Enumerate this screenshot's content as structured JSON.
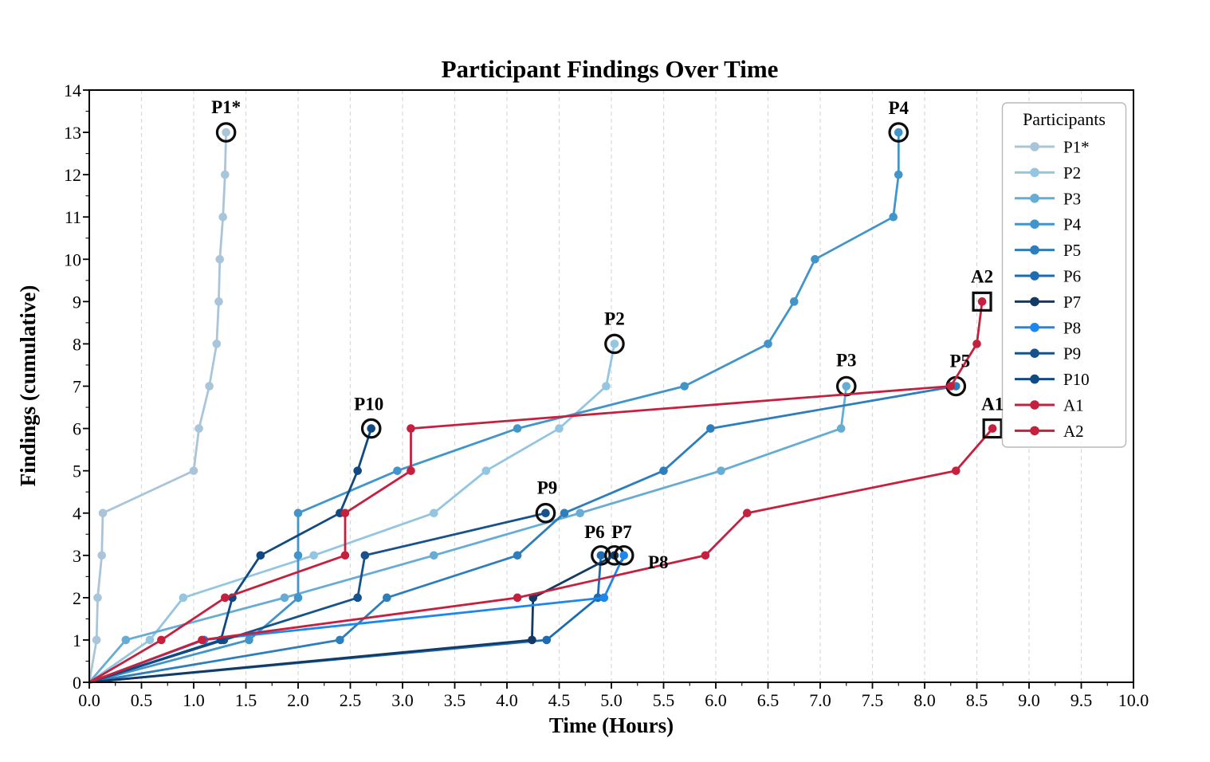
{
  "title": "Participant Findings Over Time",
  "chart_data": {
    "type": "line",
    "title": "Participant Findings Over Time",
    "xlabel": "Time (Hours)",
    "ylabel": "Findings (cumulative)",
    "xlim": [
      0.0,
      10.0
    ],
    "ylim": [
      0,
      14
    ],
    "xticks": [
      0.0,
      0.5,
      1.0,
      1.5,
      2.0,
      2.5,
      3.0,
      3.5,
      4.0,
      4.5,
      5.0,
      5.5,
      6.0,
      6.5,
      7.0,
      7.5,
      8.0,
      8.5,
      9.0,
      9.5,
      10.0
    ],
    "xtick_labels": [
      "0.0",
      "0.5",
      "1.0",
      "1.5",
      "2.0",
      "2.5",
      "3.0",
      "3.5",
      "4.0",
      "4.5",
      "5.0",
      "5.5",
      "6.0",
      "6.5",
      "7.0",
      "7.5",
      "8.0",
      "8.5",
      "9.0",
      "9.5",
      "10.0"
    ],
    "yticks": [
      0,
      1,
      2,
      3,
      4,
      5,
      6,
      7,
      8,
      9,
      10,
      11,
      12,
      13,
      14
    ],
    "grid": "vertical dashed gridlines at 0.5 hour intervals",
    "grid_color": "#d8d8d8",
    "frame_color": "#000000",
    "legend_title": "Participants",
    "legend_position": "upper right",
    "end_marker_outline_color": "#0d0d0d",
    "series": [
      {
        "name": "P1*",
        "color": "#a9c5da",
        "end_marker": "circle",
        "label_dx": 0,
        "label_dy": -24,
        "points": [
          [
            0,
            0
          ],
          [
            0.07,
            1
          ],
          [
            0.08,
            2
          ],
          [
            0.12,
            3
          ],
          [
            0.13,
            4
          ],
          [
            1.0,
            5
          ],
          [
            1.05,
            6
          ],
          [
            1.15,
            7
          ],
          [
            1.22,
            8
          ],
          [
            1.24,
            9
          ],
          [
            1.25,
            10
          ],
          [
            1.28,
            11
          ],
          [
            1.3,
            12
          ],
          [
            1.31,
            13
          ]
        ]
      },
      {
        "name": "P2",
        "color": "#94c6e1",
        "end_marker": "circle",
        "label_dx": 0,
        "label_dy": -24,
        "points": [
          [
            0,
            0
          ],
          [
            0.58,
            1
          ],
          [
            0.9,
            2
          ],
          [
            2.15,
            3
          ],
          [
            3.3,
            4
          ],
          [
            3.8,
            5
          ],
          [
            4.5,
            6
          ],
          [
            4.95,
            7
          ],
          [
            5.03,
            8
          ]
        ]
      },
      {
        "name": "P3",
        "color": "#66acd4",
        "end_marker": "circle",
        "label_dx": 0,
        "label_dy": -25,
        "points": [
          [
            0,
            0
          ],
          [
            0.35,
            1
          ],
          [
            1.87,
            2
          ],
          [
            3.3,
            3
          ],
          [
            4.7,
            4
          ],
          [
            6.05,
            5
          ],
          [
            7.2,
            6
          ],
          [
            7.25,
            7
          ]
        ]
      },
      {
        "name": "P4",
        "color": "#4295c8",
        "end_marker": "circle",
        "label_dx": 0,
        "label_dy": -23,
        "points": [
          [
            0,
            0
          ],
          [
            1.53,
            1
          ],
          [
            2.0,
            2
          ],
          [
            2.0,
            3
          ],
          [
            2.0,
            4
          ],
          [
            2.95,
            5
          ],
          [
            4.1,
            6
          ],
          [
            5.7,
            7
          ],
          [
            6.5,
            8
          ],
          [
            6.75,
            9
          ],
          [
            6.95,
            10
          ],
          [
            7.7,
            11
          ],
          [
            7.75,
            12
          ],
          [
            7.75,
            13
          ]
        ]
      },
      {
        "name": "P5",
        "color": "#2e7ebc",
        "end_marker": "circle",
        "label_dx": 5,
        "label_dy": -24,
        "points": [
          [
            0,
            0
          ],
          [
            2.4,
            1
          ],
          [
            2.85,
            2
          ],
          [
            4.1,
            3
          ],
          [
            4.55,
            4
          ],
          [
            5.5,
            5
          ],
          [
            5.95,
            6
          ],
          [
            8.3,
            7
          ]
        ]
      },
      {
        "name": "P6",
        "color": "#1d6cb1",
        "end_marker": "circle",
        "label_dx": -8,
        "label_dy": -22,
        "points": [
          [
            0,
            0
          ],
          [
            4.38,
            1
          ],
          [
            4.87,
            2
          ],
          [
            4.9,
            3
          ]
        ]
      },
      {
        "name": "P7",
        "color": "#123a64",
        "end_marker": "circle",
        "label_dx": 9,
        "label_dy": -22,
        "points": [
          [
            0,
            0
          ],
          [
            4.24,
            1
          ],
          [
            4.25,
            2
          ],
          [
            5.03,
            3
          ]
        ]
      },
      {
        "name": "P8",
        "color": "#1e87ee",
        "end_marker": "circle",
        "label_dx": 43,
        "label_dy": 16,
        "points": [
          [
            0,
            0
          ],
          [
            1.1,
            1
          ],
          [
            4.93,
            2
          ],
          [
            5.12,
            3
          ]
        ]
      },
      {
        "name": "P9",
        "color": "#17528c",
        "end_marker": "circle",
        "label_dx": 2,
        "label_dy": -24,
        "points": [
          [
            0,
            0
          ],
          [
            1.29,
            1
          ],
          [
            2.57,
            2
          ],
          [
            2.64,
            3
          ],
          [
            4.37,
            4
          ]
        ]
      },
      {
        "name": "P10",
        "color": "#114a82",
        "end_marker": "circle",
        "label_dx": -3,
        "label_dy": -23,
        "points": [
          [
            0,
            0
          ],
          [
            1.26,
            1
          ],
          [
            1.37,
            2
          ],
          [
            1.64,
            3
          ],
          [
            2.4,
            4
          ],
          [
            2.57,
            5
          ],
          [
            2.7,
            6
          ]
        ]
      },
      {
        "name": "A1",
        "color": "#c6203f",
        "end_marker": "square",
        "label_dx": 0,
        "label_dy": -23,
        "points": [
          [
            0,
            0
          ],
          [
            1.08,
            1
          ],
          [
            4.1,
            2
          ],
          [
            5.9,
            3
          ],
          [
            6.3,
            4
          ],
          [
            8.3,
            5
          ],
          [
            8.65,
            6
          ]
        ]
      },
      {
        "name": "A2",
        "color": "#c6203f",
        "end_marker": "square",
        "label_dx": 0,
        "label_dy": -24,
        "points": [
          [
            0,
            0
          ],
          [
            0.69,
            1
          ],
          [
            1.3,
            2
          ],
          [
            2.45,
            3
          ],
          [
            2.45,
            4
          ],
          [
            3.08,
            5
          ],
          [
            3.08,
            6
          ],
          [
            8.25,
            7
          ],
          [
            8.5,
            8
          ],
          [
            8.55,
            9
          ]
        ]
      }
    ]
  }
}
